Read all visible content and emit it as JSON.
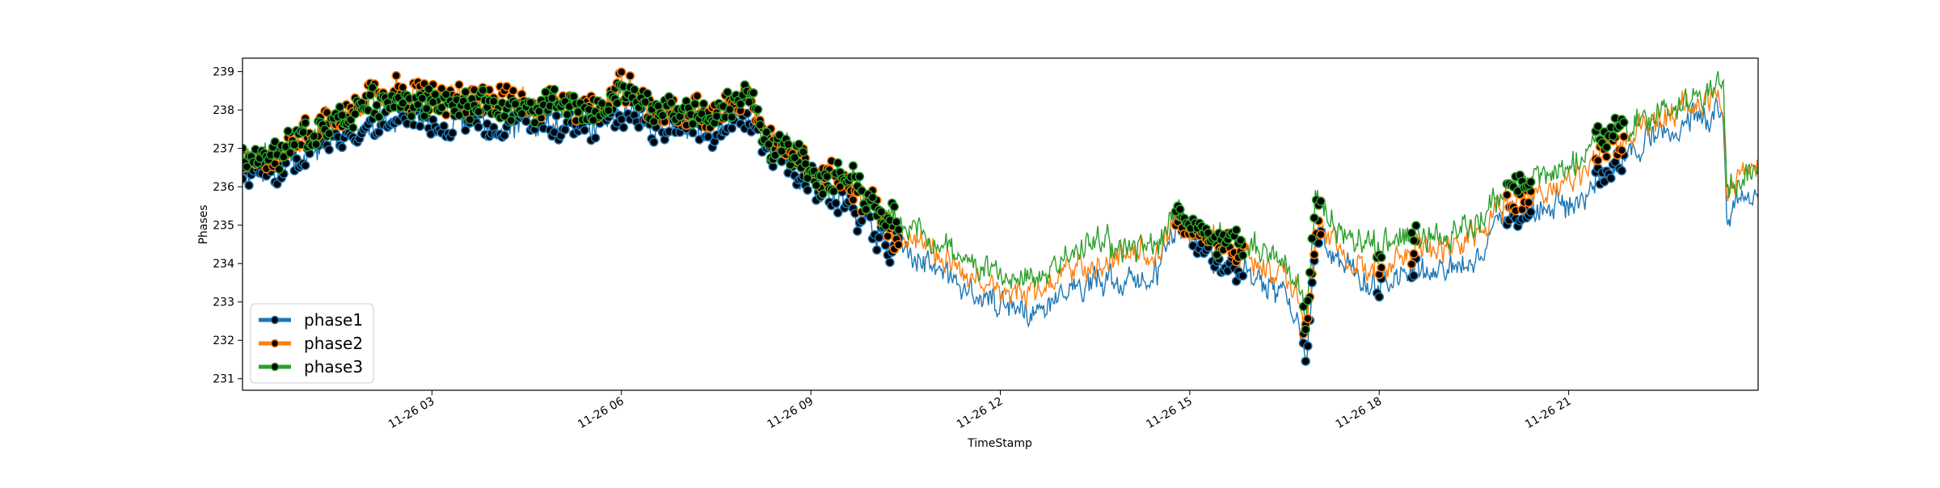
{
  "chart_data": {
    "type": "line",
    "title": "",
    "xlabel": "TimeStamp",
    "ylabel": "Phases",
    "x_range_hours": [
      0,
      24
    ],
    "ylim": [
      230.7,
      239.35
    ],
    "x_ticks": [
      {
        "hour": 3,
        "label": "11-26 03"
      },
      {
        "hour": 6,
        "label": "11-26 06"
      },
      {
        "hour": 9,
        "label": "11-26 09"
      },
      {
        "hour": 12,
        "label": "11-26 12"
      },
      {
        "hour": 15,
        "label": "11-26 15"
      },
      {
        "hour": 18,
        "label": "11-26 18"
      },
      {
        "hour": 21,
        "label": "11-26 21"
      }
    ],
    "y_ticks": [
      231,
      232,
      233,
      234,
      235,
      236,
      237,
      238,
      239
    ],
    "grid": false,
    "legend_position": "lower-left",
    "series": [
      {
        "name": "phase1",
        "color": "#1f77b4",
        "points": [
          [
            0,
            236.2
          ],
          [
            0.5,
            236.4
          ],
          [
            1,
            236.9
          ],
          [
            1.5,
            237.3
          ],
          [
            2,
            237.6
          ],
          [
            2.5,
            237.8
          ],
          [
            3,
            237.7
          ],
          [
            3.5,
            237.6
          ],
          [
            4,
            237.5
          ],
          [
            4.5,
            237.6
          ],
          [
            5,
            237.5
          ],
          [
            5.5,
            237.5
          ],
          [
            6,
            237.9
          ],
          [
            6.5,
            237.6
          ],
          [
            7,
            237.5
          ],
          [
            7.5,
            237.4
          ],
          [
            8,
            237.7
          ],
          [
            8.3,
            236.9
          ],
          [
            8.7,
            236.5
          ],
          [
            9,
            236.1
          ],
          [
            9.3,
            235.8
          ],
          [
            9.7,
            235.5
          ],
          [
            10,
            235.0
          ],
          [
            10.3,
            234.5
          ],
          [
            10.7,
            234.2
          ],
          [
            11,
            233.8
          ],
          [
            11.5,
            233.3
          ],
          [
            12,
            232.9
          ],
          [
            12.5,
            232.7
          ],
          [
            13,
            233.2
          ],
          [
            13.5,
            233.6
          ],
          [
            14,
            233.6
          ],
          [
            14.5,
            233.8
          ],
          [
            14.8,
            235.0
          ],
          [
            15,
            234.6
          ],
          [
            15.5,
            234.0
          ],
          [
            16,
            233.6
          ],
          [
            16.5,
            233.1
          ],
          [
            16.7,
            232.6
          ],
          [
            16.85,
            231.2
          ],
          [
            17,
            234.7
          ],
          [
            17.5,
            233.8
          ],
          [
            18,
            233.4
          ],
          [
            18.5,
            233.9
          ],
          [
            19,
            233.8
          ],
          [
            19.5,
            234.2
          ],
          [
            20,
            235.2
          ],
          [
            20.5,
            235.4
          ],
          [
            21,
            235.5
          ],
          [
            21.5,
            236.3
          ],
          [
            22,
            237.0
          ],
          [
            22.5,
            237.4
          ],
          [
            23,
            237.7
          ],
          [
            23.45,
            237.8
          ],
          [
            23.5,
            235.4
          ],
          [
            24,
            235.9
          ]
        ]
      },
      {
        "name": "phase2",
        "color": "#ff7f0e",
        "points": [
          [
            0,
            236.8
          ],
          [
            0.5,
            236.7
          ],
          [
            1,
            237.3
          ],
          [
            1.5,
            237.9
          ],
          [
            2,
            238.3
          ],
          [
            2.5,
            238.5
          ],
          [
            3,
            238.4
          ],
          [
            3.5,
            238.3
          ],
          [
            4,
            238.3
          ],
          [
            4.5,
            238.2
          ],
          [
            5,
            238.2
          ],
          [
            5.5,
            238.0
          ],
          [
            6,
            238.6
          ],
          [
            6.5,
            238.1
          ],
          [
            7,
            238.0
          ],
          [
            7.5,
            237.9
          ],
          [
            8,
            238.4
          ],
          [
            8.3,
            237.4
          ],
          [
            8.7,
            236.9
          ],
          [
            9,
            236.4
          ],
          [
            9.3,
            236.2
          ],
          [
            9.7,
            235.9
          ],
          [
            10,
            235.5
          ],
          [
            10.3,
            234.8
          ],
          [
            10.7,
            234.6
          ],
          [
            11,
            234.2
          ],
          [
            11.5,
            233.7
          ],
          [
            12,
            233.3
          ],
          [
            12.5,
            233.2
          ],
          [
            13,
            233.7
          ],
          [
            13.5,
            234.1
          ],
          [
            14,
            234.1
          ],
          [
            14.5,
            234.3
          ],
          [
            14.8,
            235.2
          ],
          [
            15,
            234.9
          ],
          [
            15.5,
            234.4
          ],
          [
            16,
            234.1
          ],
          [
            16.5,
            233.6
          ],
          [
            16.7,
            233.3
          ],
          [
            16.85,
            232.1
          ],
          [
            17,
            235.1
          ],
          [
            17.5,
            234.2
          ],
          [
            18,
            233.9
          ],
          [
            18.5,
            234.3
          ],
          [
            19,
            234.3
          ],
          [
            19.5,
            234.7
          ],
          [
            20,
            235.6
          ],
          [
            20.5,
            235.8
          ],
          [
            21,
            236.0
          ],
          [
            21.5,
            236.8
          ],
          [
            22,
            237.4
          ],
          [
            22.5,
            237.8
          ],
          [
            23,
            238.2
          ],
          [
            23.45,
            238.3
          ],
          [
            23.5,
            235.9
          ],
          [
            24,
            236.4
          ]
        ]
      },
      {
        "name": "phase3",
        "color": "#2ca02c",
        "points": [
          [
            0,
            236.9
          ],
          [
            0.5,
            236.8
          ],
          [
            1,
            237.2
          ],
          [
            1.5,
            237.8
          ],
          [
            2,
            238.1
          ],
          [
            2.5,
            238.3
          ],
          [
            3,
            238.2
          ],
          [
            3.5,
            238.1
          ],
          [
            4,
            238.2
          ],
          [
            4.5,
            238.0
          ],
          [
            5,
            238.1
          ],
          [
            5.5,
            237.9
          ],
          [
            6,
            238.5
          ],
          [
            6.5,
            238.0
          ],
          [
            7,
            237.9
          ],
          [
            7.5,
            237.8
          ],
          [
            8,
            238.6
          ],
          [
            8.3,
            237.2
          ],
          [
            8.7,
            236.8
          ],
          [
            9,
            236.4
          ],
          [
            9.3,
            236.3
          ],
          [
            9.7,
            236.0
          ],
          [
            10,
            235.6
          ],
          [
            10.3,
            235.1
          ],
          [
            10.7,
            234.9
          ],
          [
            11,
            234.6
          ],
          [
            11.5,
            234.1
          ],
          [
            12,
            233.7
          ],
          [
            12.5,
            233.5
          ],
          [
            13,
            234.1
          ],
          [
            13.5,
            234.5
          ],
          [
            14,
            234.4
          ],
          [
            14.5,
            234.5
          ],
          [
            14.8,
            235.3
          ],
          [
            15,
            235.0
          ],
          [
            15.5,
            234.7
          ],
          [
            16,
            234.4
          ],
          [
            16.5,
            234.0
          ],
          [
            16.7,
            233.6
          ],
          [
            16.85,
            232.6
          ],
          [
            17,
            235.8
          ],
          [
            17.5,
            234.6
          ],
          [
            18,
            234.4
          ],
          [
            18.5,
            234.7
          ],
          [
            19,
            234.8
          ],
          [
            19.5,
            235.1
          ],
          [
            20,
            236.0
          ],
          [
            20.5,
            236.3
          ],
          [
            21,
            236.5
          ],
          [
            21.5,
            237.3
          ],
          [
            22,
            237.6
          ],
          [
            22.5,
            238.0
          ],
          [
            23,
            238.3
          ],
          [
            23.45,
            238.6
          ],
          [
            23.5,
            236.0
          ],
          [
            24,
            236.5
          ]
        ]
      }
    ],
    "marker_regions": [
      {
        "start_hour": 0,
        "end_hour": 10.4
      },
      {
        "start_hour": 14.75,
        "end_hour": 15.85
      },
      {
        "start_hour": 16.8,
        "end_hour": 17.1
      },
      {
        "start_hour": 17.95,
        "end_hour": 18.05
      },
      {
        "start_hour": 18.5,
        "end_hour": 18.6
      },
      {
        "start_hour": 20.0,
        "end_hour": 20.4
      },
      {
        "start_hour": 21.4,
        "end_hour": 21.9
      }
    ]
  }
}
